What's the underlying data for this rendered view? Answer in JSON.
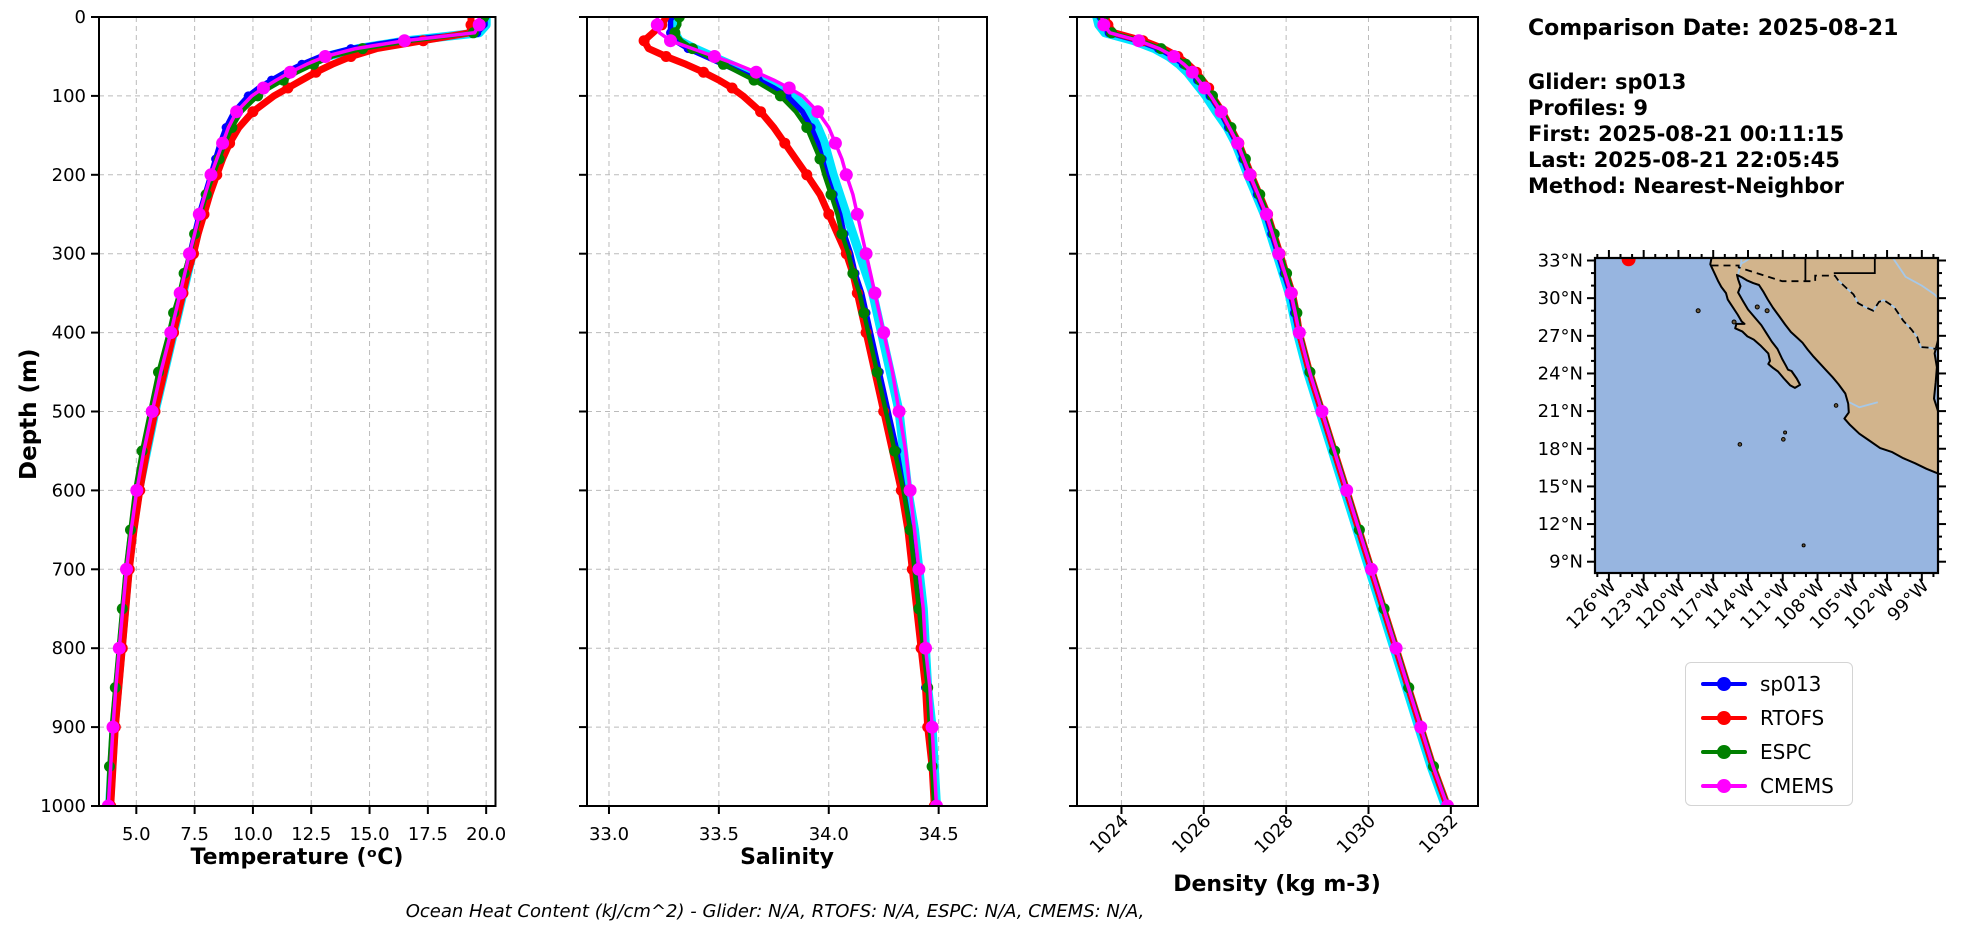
{
  "info_panel": {
    "comparison_date": "Comparison Date: 2025-08-21",
    "lines": [
      "Glider: sp013",
      "Profiles: 9",
      "First: 2025-08-21 00:11:15",
      "Last: 2025-08-21 22:05:45",
      "Method: Nearest-Neighbor"
    ]
  },
  "footer_note": "Ocean Heat Content (kJ/cm^2) - Glider: N/A,  RTOFS: N/A,  ESPC: N/A,  CMEMS: N/A,",
  "legend": {
    "entries": [
      {
        "label": "sp013",
        "color": "#0000ff"
      },
      {
        "label": "RTOFS",
        "color": "#ff0000"
      },
      {
        "label": "ESPC",
        "color": "#008000"
      },
      {
        "label": "CMEMS",
        "color": "#ff00ff"
      }
    ]
  },
  "map": {
    "lat_ticks": [
      "33°N",
      "30°N",
      "27°N",
      "24°N",
      "21°N",
      "18°N",
      "15°N",
      "12°N",
      "9°N"
    ],
    "lat_vals": [
      33,
      30,
      27,
      24,
      21,
      18,
      15,
      12,
      9
    ],
    "lon_ticks": [
      "126°W",
      "123°W",
      "120°W",
      "117°W",
      "114°W",
      "111°W",
      "108°W",
      "105°W",
      "102°W",
      "99°W"
    ],
    "lon_vals": [
      -126,
      -123,
      -120,
      -117,
      -114,
      -111,
      -108,
      -105,
      -102,
      -99
    ],
    "ocean_color": "#97b5e0",
    "land_color": "#d2b48c",
    "river_color": "#a6c8e8",
    "glider_marker_color": "#ff0000"
  },
  "chart_data": {
    "type": "line",
    "ylabel": "Depth (m)",
    "yticks": [
      0,
      100,
      200,
      300,
      400,
      500,
      600,
      700,
      800,
      900,
      1000
    ],
    "ylim": [
      0,
      1000
    ],
    "y_inverted": true,
    "grid": true,
    "depths": [
      0,
      10,
      20,
      30,
      40,
      50,
      60,
      70,
      80,
      90,
      100,
      120,
      140,
      160,
      180,
      200,
      225,
      250,
      275,
      300,
      325,
      350,
      375,
      400,
      450,
      500,
      550,
      600,
      650,
      700,
      750,
      800,
      850,
      900,
      950,
      1000
    ],
    "plots": [
      {
        "key": "temperature",
        "xlabel": "Temperature (ᵒC)",
        "xlim": [
          3.4,
          20.4
        ],
        "xticks": [
          "5.0",
          "7.5",
          "10.0",
          "12.5",
          "15.0",
          "17.5",
          "20.0"
        ],
        "xtick_vals": [
          5,
          7.5,
          10,
          12.5,
          15,
          17.5,
          20
        ],
        "rotate_xticks": 0
      },
      {
        "key": "salinity",
        "xlabel": "Salinity",
        "xlim": [
          32.9,
          34.72
        ],
        "xticks": [
          "33.0",
          "33.5",
          "34.0",
          "34.5"
        ],
        "xtick_vals": [
          33,
          33.5,
          34,
          34.5
        ],
        "rotate_xticks": 0
      },
      {
        "key": "density",
        "xlabel": "Density (kg m-3)",
        "xlim": [
          1022.92,
          1032.66
        ],
        "xticks": [
          "1024",
          "1026",
          "1028",
          "1030",
          "1032"
        ],
        "xtick_vals": [
          1024,
          1026,
          1028,
          1030,
          1032
        ],
        "rotate_xticks": 45
      }
    ],
    "series": [
      {
        "name": "sp013-raw-profiles",
        "color": "#00e5ff",
        "in_legend": false,
        "temperature": [
          20.0,
          20.0,
          19.7,
          16.6,
          14.5,
          13.15,
          12.35,
          11.65,
          11.0,
          10.45,
          10.0,
          9.35,
          8.95,
          8.7,
          8.5,
          8.3,
          8.05,
          7.8,
          7.6,
          7.4,
          7.2,
          7.0,
          6.8,
          6.6,
          6.2,
          5.8,
          5.45,
          5.1,
          4.85,
          4.65,
          4.5,
          4.35,
          4.2,
          4.05,
          3.95,
          3.85
        ],
        "salinity": [
          33.3,
          33.3,
          33.3,
          33.32,
          33.39,
          33.47,
          33.55,
          33.63,
          33.71,
          33.78,
          33.84,
          33.91,
          33.95,
          33.98,
          34.0,
          34.02,
          34.05,
          34.08,
          34.11,
          34.14,
          34.17,
          34.2,
          34.22,
          34.24,
          34.28,
          34.32,
          34.34,
          34.36,
          34.39,
          34.41,
          34.43,
          34.44,
          34.45,
          34.47,
          34.48,
          34.49
        ],
        "density": [
          1023.4,
          1023.45,
          1023.6,
          1024.3,
          1024.8,
          1025.15,
          1025.4,
          1025.6,
          1025.75,
          1025.9,
          1026.05,
          1026.3,
          1026.57,
          1026.77,
          1026.92,
          1027.07,
          1027.27,
          1027.47,
          1027.62,
          1027.77,
          1027.92,
          1028.07,
          1028.17,
          1028.27,
          1028.52,
          1028.82,
          1029.12,
          1029.42,
          1029.72,
          1030.02,
          1030.32,
          1030.62,
          1030.92,
          1031.22,
          1031.52,
          1031.87
        ]
      },
      {
        "name": "sp013",
        "color": "#0000ff",
        "in_legend": true,
        "temperature": [
          19.95,
          19.95,
          19.6,
          16.3,
          14.2,
          12.9,
          12.1,
          11.4,
          10.8,
          10.25,
          9.8,
          9.2,
          8.85,
          8.6,
          8.4,
          8.2,
          7.95,
          7.7,
          7.5,
          7.3,
          7.1,
          6.9,
          6.7,
          6.5,
          6.1,
          5.7,
          5.35,
          5.05,
          4.8,
          4.6,
          4.45,
          4.3,
          4.15,
          4.0,
          3.9,
          3.8
        ],
        "salinity": [
          33.28,
          33.28,
          33.28,
          33.3,
          33.36,
          33.44,
          33.52,
          33.6,
          33.68,
          33.75,
          33.81,
          33.88,
          33.92,
          33.95,
          33.97,
          33.99,
          34.02,
          34.05,
          34.07,
          34.1,
          34.12,
          34.15,
          34.17,
          34.19,
          34.23,
          34.27,
          34.31,
          34.34,
          34.37,
          34.39,
          34.41,
          34.43,
          34.44,
          34.46,
          34.47,
          34.48
        ],
        "density": [
          1023.5,
          1023.55,
          1023.7,
          1024.4,
          1024.9,
          1025.25,
          1025.5,
          1025.7,
          1025.85,
          1026.0,
          1026.15,
          1026.4,
          1026.6,
          1026.8,
          1026.95,
          1027.1,
          1027.3,
          1027.5,
          1027.65,
          1027.8,
          1027.95,
          1028.1,
          1028.2,
          1028.3,
          1028.55,
          1028.85,
          1029.15,
          1029.45,
          1029.75,
          1030.05,
          1030.35,
          1030.65,
          1030.95,
          1031.25,
          1031.55,
          1031.9
        ]
      },
      {
        "name": "RTOFS",
        "color": "#ff0000",
        "in_legend": true,
        "temperature": [
          19.35,
          19.35,
          19.3,
          17.3,
          15.3,
          14.2,
          13.4,
          12.7,
          12.1,
          11.5,
          10.9,
          10.0,
          9.4,
          9.0,
          8.7,
          8.45,
          8.15,
          7.9,
          7.65,
          7.45,
          7.2,
          7.0,
          6.8,
          6.6,
          6.2,
          5.8,
          5.45,
          5.15,
          4.9,
          4.7,
          4.55,
          4.4,
          4.25,
          4.1,
          4.0,
          3.9
        ],
        "salinity": [
          33.26,
          33.24,
          33.2,
          33.16,
          33.18,
          33.26,
          33.35,
          33.43,
          33.5,
          33.56,
          33.61,
          33.69,
          33.75,
          33.8,
          33.85,
          33.9,
          33.96,
          34.0,
          34.04,
          34.08,
          34.11,
          34.13,
          34.15,
          34.17,
          34.21,
          34.25,
          34.29,
          34.33,
          34.36,
          34.38,
          34.4,
          34.42,
          34.44,
          34.45,
          34.47,
          34.48
        ],
        "density": [
          1023.62,
          1023.67,
          1023.82,
          1024.52,
          1025.02,
          1025.37,
          1025.62,
          1025.82,
          1025.97,
          1026.12,
          1026.2,
          1026.45,
          1026.65,
          1026.85,
          1027.0,
          1027.15,
          1027.35,
          1027.55,
          1027.7,
          1027.85,
          1028.0,
          1028.15,
          1028.25,
          1028.32,
          1028.57,
          1028.87,
          1029.17,
          1029.47,
          1029.77,
          1030.07,
          1030.37,
          1030.67,
          1030.97,
          1031.27,
          1031.57,
          1031.92
        ]
      },
      {
        "name": "ESPC",
        "color": "#008000",
        "in_legend": true,
        "temperature": [
          19.9,
          19.85,
          19.45,
          16.8,
          14.7,
          13.4,
          12.6,
          11.9,
          11.3,
          10.7,
          10.2,
          9.5,
          9.1,
          8.8,
          8.55,
          8.3,
          8.0,
          7.75,
          7.5,
          7.3,
          7.05,
          6.85,
          6.6,
          6.4,
          5.95,
          5.6,
          5.25,
          4.95,
          4.75,
          4.55,
          4.4,
          4.25,
          4.1,
          3.95,
          3.85,
          3.78
        ],
        "salinity": [
          33.32,
          33.32,
          33.3,
          33.33,
          33.38,
          33.45,
          33.52,
          33.59,
          33.66,
          33.72,
          33.78,
          33.85,
          33.9,
          33.93,
          33.96,
          33.98,
          34.01,
          34.04,
          34.06,
          34.09,
          34.11,
          34.14,
          34.16,
          34.18,
          34.22,
          34.26,
          34.3,
          34.34,
          34.37,
          34.39,
          34.41,
          34.43,
          34.45,
          34.46,
          34.47,
          34.48
        ],
        "density": [
          1023.56,
          1023.61,
          1023.76,
          1024.46,
          1024.96,
          1025.31,
          1025.56,
          1025.76,
          1025.91,
          1026.06,
          1026.21,
          1026.46,
          1026.66,
          1026.86,
          1027.01,
          1027.16,
          1027.36,
          1027.56,
          1027.71,
          1027.86,
          1028.01,
          1028.16,
          1028.26,
          1028.33,
          1028.58,
          1028.88,
          1029.18,
          1029.48,
          1029.78,
          1030.08,
          1030.38,
          1030.68,
          1030.98,
          1031.28,
          1031.58,
          1031.93
        ]
      },
      {
        "name": "CMEMS",
        "color": "#ff00ff",
        "in_legend": true,
        "temperature": [
          19.7,
          19.7,
          19.5,
          16.5,
          14.4,
          13.1,
          12.3,
          11.6,
          11.0,
          10.45,
          9.95,
          9.3,
          8.95,
          8.7,
          8.45,
          8.2,
          7.95,
          7.7,
          7.5,
          7.28,
          7.08,
          6.88,
          6.68,
          6.48,
          6.05,
          5.68,
          5.32,
          5.02,
          4.78,
          4.58,
          4.42,
          4.27,
          4.12,
          4.0,
          3.9,
          3.8
        ],
        "salinity": [
          33.22,
          33.22,
          33.23,
          33.28,
          33.38,
          33.48,
          33.58,
          33.67,
          33.75,
          33.82,
          33.88,
          33.95,
          34.0,
          34.03,
          34.06,
          34.08,
          34.11,
          34.13,
          34.15,
          34.17,
          34.19,
          34.21,
          34.23,
          34.25,
          34.29,
          34.32,
          34.35,
          34.37,
          34.39,
          34.41,
          34.43,
          34.44,
          34.46,
          34.47,
          34.48,
          34.49
        ],
        "density": [
          1023.52,
          1023.57,
          1023.72,
          1024.42,
          1024.92,
          1025.27,
          1025.52,
          1025.72,
          1025.87,
          1026.02,
          1026.17,
          1026.42,
          1026.62,
          1026.82,
          1026.97,
          1027.12,
          1027.32,
          1027.52,
          1027.67,
          1027.82,
          1027.97,
          1028.12,
          1028.22,
          1028.32,
          1028.57,
          1028.87,
          1029.17,
          1029.47,
          1029.77,
          1030.07,
          1030.37,
          1030.67,
          1030.97,
          1031.27,
          1031.57,
          1031.92
        ]
      }
    ]
  }
}
